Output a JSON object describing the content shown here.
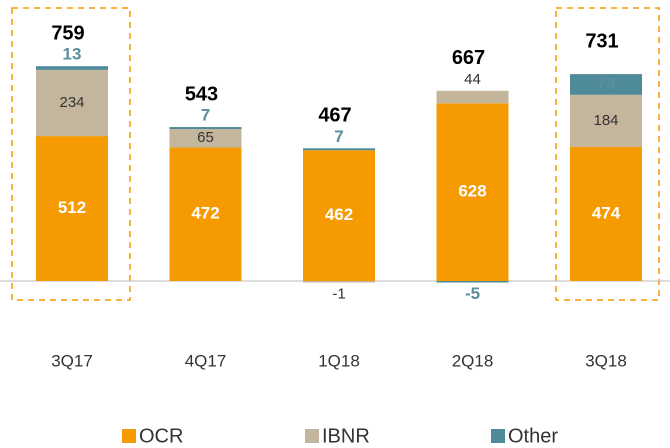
{
  "chart_data": {
    "type": "stacked_bar",
    "categories": [
      "3Q17",
      "4Q17",
      "1Q18",
      "2Q18",
      "3Q18"
    ],
    "series": [
      {
        "name": "OCR",
        "color": "#f59a00",
        "values": [
          512,
          472,
          462,
          628,
          474
        ]
      },
      {
        "name": "IBNR",
        "color": "#c4b69c",
        "values": [
          234,
          65,
          -1,
          44,
          184
        ]
      },
      {
        "name": "Other",
        "color": "#4f8a9a",
        "values": [
          13,
          7,
          7,
          -5,
          73
        ]
      }
    ],
    "totals": [
      759,
      543,
      467,
      667,
      731
    ],
    "legend": "bottom"
  }
}
